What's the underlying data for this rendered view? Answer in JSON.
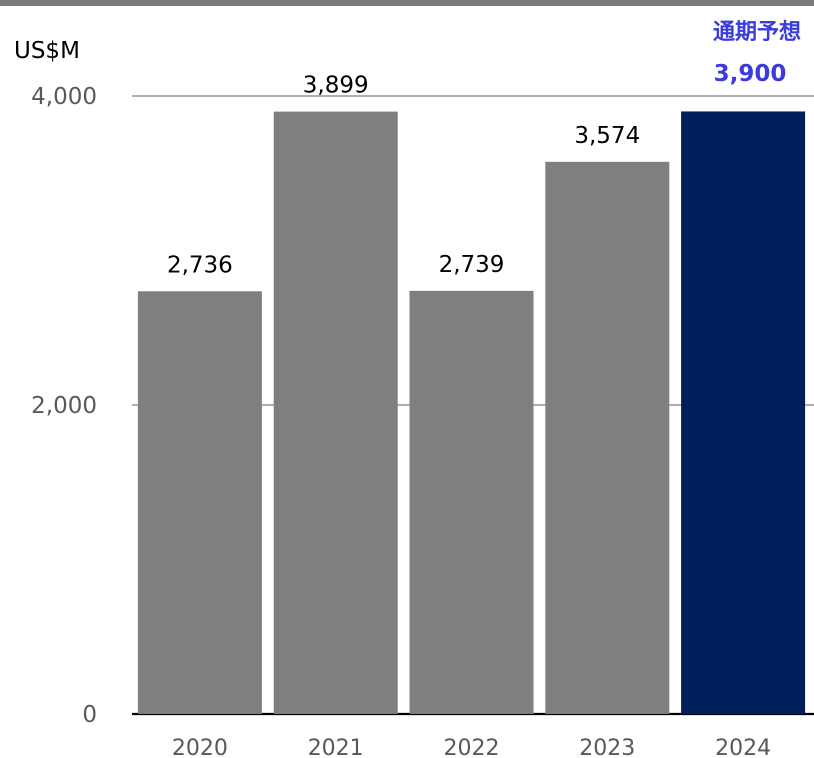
{
  "chart_data": {
    "type": "bar",
    "unit": "US$M",
    "categories": [
      "2020",
      "2021",
      "2022",
      "2023",
      "2024"
    ],
    "values": [
      2736,
      3899,
      2739,
      3574,
      3900
    ],
    "data_labels": [
      "2,736",
      "3,899",
      "2,739",
      "3,574",
      ""
    ],
    "ylim": [
      0,
      4000
    ],
    "yticks": [
      0,
      2000,
      4000
    ],
    "ytick_labels": [
      "0",
      "2,000",
      "4,000"
    ],
    "grid": true,
    "forecast": {
      "category": "2024",
      "label": "通期予想",
      "value_label": "3,900"
    }
  },
  "colors": {
    "bar": "#7f7f7f",
    "forecast_bar": "#001d5c",
    "forecast_text": "#3b3bde"
  }
}
